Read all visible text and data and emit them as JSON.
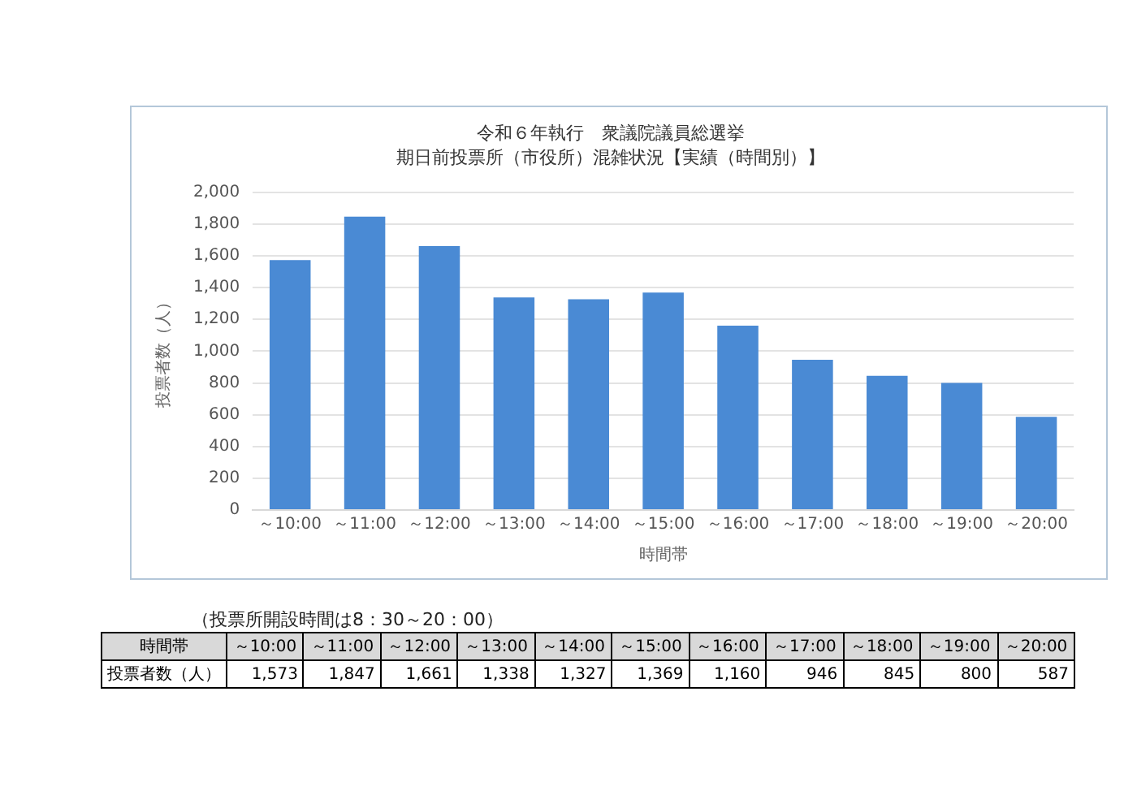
{
  "chart_data": {
    "type": "bar",
    "title": "令和６年執行　衆議院議員総選挙",
    "subtitle": "期日前投票所（市役所）混雑状況【実績（時間別）】",
    "xlabel": "時間帯",
    "ylabel": "投票者数（人）",
    "categories": [
      "～10:00",
      "～11:00",
      "～12:00",
      "～13:00",
      "～14:00",
      "～15:00",
      "～16:00",
      "～17:00",
      "～18:00",
      "～19:00",
      "～20:00"
    ],
    "values": [
      1573,
      1847,
      1661,
      1338,
      1327,
      1369,
      1160,
      946,
      845,
      800,
      587
    ],
    "value_labels": [
      "1,573",
      "1,847",
      "1,661",
      "1,338",
      "1,327",
      "1,369",
      "1,160",
      "946",
      "845",
      "800",
      "587"
    ],
    "color": "#4a8ad4",
    "ylim": [
      0,
      2000
    ],
    "yticks": [
      {
        "value": 0,
        "label": "0"
      },
      {
        "value": 200,
        "label": "200"
      },
      {
        "value": 400,
        "label": "400"
      },
      {
        "value": 600,
        "label": "600"
      },
      {
        "value": 800,
        "label": "800"
      },
      {
        "value": 1000,
        "label": "1,000"
      },
      {
        "value": 1200,
        "label": "1,200"
      },
      {
        "value": 1400,
        "label": "1,400"
      },
      {
        "value": 1600,
        "label": "1,600"
      },
      {
        "value": 1800,
        "label": "1,800"
      },
      {
        "value": 2000,
        "label": "2,000"
      }
    ],
    "grid": "y",
    "legend": false,
    "annotations": [
      "（投票所開設時間は8：30～20：00）"
    ]
  }
}
